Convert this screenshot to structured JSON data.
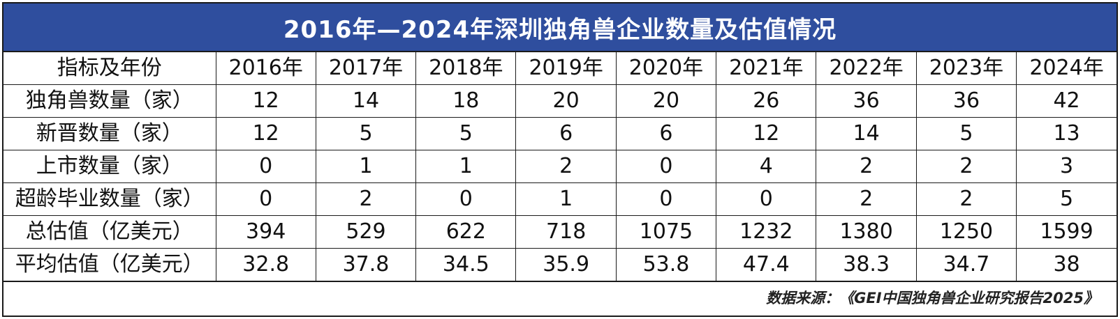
{
  "title": "2016年—2024年深圳独角兽企业数量及估值情况",
  "header": {
    "label": "指标及年份",
    "years": [
      "2016年",
      "2017年",
      "2018年",
      "2019年",
      "2020年",
      "2021年",
      "2022年",
      "2023年",
      "2024年"
    ]
  },
  "rows": [
    {
      "label": "独角兽数量（家）",
      "values": [
        "12",
        "14",
        "18",
        "20",
        "20",
        "26",
        "36",
        "36",
        "42"
      ]
    },
    {
      "label": "新晋数量（家）",
      "values": [
        "12",
        "5",
        "5",
        "6",
        "6",
        "12",
        "14",
        "5",
        "13"
      ]
    },
    {
      "label": "上市数量（家）",
      "values": [
        "0",
        "1",
        "1",
        "2",
        "0",
        "4",
        "2",
        "2",
        "3"
      ]
    },
    {
      "label": "超龄毕业数量（家）",
      "values": [
        "0",
        "2",
        "0",
        "1",
        "0",
        "0",
        "2",
        "2",
        "5"
      ]
    },
    {
      "label": "总估值（亿美元）",
      "values": [
        "394",
        "529",
        "622",
        "718",
        "1075",
        "1232",
        "1380",
        "1250",
        "1599"
      ]
    },
    {
      "label": "平均估值（亿美元）",
      "values": [
        "32.8",
        "37.8",
        "34.5",
        "35.9",
        "53.8",
        "47.4",
        "38.3",
        "34.7",
        "38"
      ]
    }
  ],
  "source": "数据来源：《GEI中国独角兽企业研究报告2025》"
}
